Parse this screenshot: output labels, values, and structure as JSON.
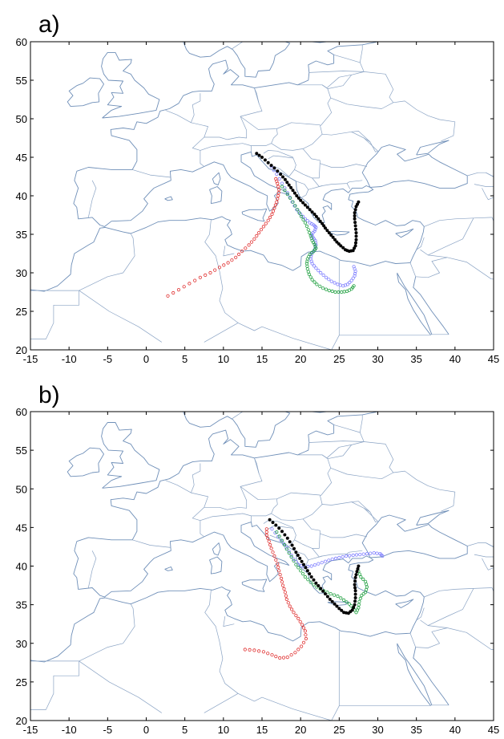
{
  "panels": [
    {
      "label": "a)",
      "trajectories": [
        {
          "color": "#e03030",
          "filled": false,
          "points": [
            [
              2.8,
              27.0
            ],
            [
              4.2,
              27.8
            ],
            [
              5.6,
              28.6
            ],
            [
              7.0,
              29.4
            ],
            [
              8.3,
              30.0
            ],
            [
              9.5,
              30.7
            ],
            [
              10.6,
              31.3
            ],
            [
              11.6,
              32.0
            ],
            [
              12.4,
              32.8
            ],
            [
              13.3,
              33.6
            ],
            [
              14.0,
              34.4
            ],
            [
              14.6,
              35.2
            ],
            [
              15.2,
              36.0
            ],
            [
              15.8,
              36.8
            ],
            [
              16.3,
              37.6
            ],
            [
              16.6,
              38.4
            ],
            [
              16.9,
              39.2
            ],
            [
              17.1,
              40.0
            ],
            [
              17.2,
              40.8
            ],
            [
              17.0,
              41.6
            ],
            [
              16.8,
              42.2
            ]
          ]
        },
        {
          "color": "#8080ff",
          "filled": false,
          "points": [
            [
              16.2,
              43.8
            ],
            [
              16.9,
              42.8
            ],
            [
              17.6,
              41.6
            ],
            [
              18.3,
              40.4
            ],
            [
              18.9,
              39.2
            ],
            [
              19.5,
              38.2
            ],
            [
              20.0,
              37.6
            ],
            [
              20.6,
              37.0
            ],
            [
              21.2,
              36.5
            ],
            [
              21.7,
              36.2
            ],
            [
              22.0,
              35.9
            ],
            [
              21.8,
              35.4
            ],
            [
              21.4,
              35.0
            ],
            [
              21.6,
              34.6
            ],
            [
              21.9,
              34.2
            ],
            [
              22.0,
              33.6
            ],
            [
              21.8,
              33.0
            ],
            [
              21.4,
              32.4
            ],
            [
              21.3,
              31.8
            ],
            [
              21.5,
              31.2
            ],
            [
              22.0,
              30.6
            ],
            [
              22.6,
              30.0
            ],
            [
              23.3,
              29.4
            ],
            [
              24.0,
              28.9
            ],
            [
              24.8,
              28.5
            ],
            [
              25.5,
              28.3
            ],
            [
              26.1,
              28.5
            ],
            [
              26.6,
              29.0
            ],
            [
              27.0,
              29.6
            ],
            [
              27.1,
              30.2
            ],
            [
              26.9,
              30.8
            ]
          ]
        },
        {
          "color": "#20a040",
          "filled": false,
          "points": [
            [
              17.6,
              41.2
            ],
            [
              18.3,
              40.2
            ],
            [
              19.0,
              39.2
            ],
            [
              19.6,
              38.2
            ],
            [
              20.1,
              37.3
            ],
            [
              20.6,
              36.5
            ],
            [
              21.0,
              35.6
            ],
            [
              21.3,
              34.8
            ],
            [
              21.5,
              34.2
            ],
            [
              21.8,
              33.7
            ],
            [
              22.0,
              33.2
            ],
            [
              21.7,
              32.8
            ],
            [
              21.2,
              32.4
            ],
            [
              20.9,
              31.8
            ],
            [
              20.8,
              31.2
            ],
            [
              20.9,
              30.5
            ],
            [
              21.1,
              29.8
            ],
            [
              21.5,
              29.1
            ],
            [
              22.1,
              28.5
            ],
            [
              22.9,
              28.0
            ],
            [
              23.7,
              27.7
            ],
            [
              24.5,
              27.5
            ],
            [
              25.3,
              27.5
            ],
            [
              26.0,
              27.6
            ],
            [
              26.6,
              27.9
            ],
            [
              26.9,
              28.3
            ]
          ]
        },
        {
          "color": "#000000",
          "filled": true,
          "points": [
            [
              14.3,
              45.5
            ],
            [
              15.0,
              45.0
            ],
            [
              15.8,
              44.3
            ],
            [
              16.6,
              43.6
            ],
            [
              17.4,
              42.8
            ],
            [
              18.0,
              42.1
            ],
            [
              18.5,
              41.4
            ],
            [
              19.0,
              40.7
            ],
            [
              19.5,
              40.0
            ],
            [
              20.0,
              39.4
            ],
            [
              20.6,
              38.8
            ],
            [
              21.2,
              38.2
            ],
            [
              21.8,
              37.6
            ],
            [
              22.3,
              37.0
            ],
            [
              22.8,
              36.4
            ],
            [
              23.2,
              35.8
            ],
            [
              23.7,
              35.2
            ],
            [
              24.2,
              34.6
            ],
            [
              24.7,
              34.0
            ],
            [
              25.2,
              33.5
            ],
            [
              25.8,
              33.0
            ],
            [
              26.3,
              32.8
            ],
            [
              26.8,
              32.9
            ],
            [
              27.1,
              33.5
            ],
            [
              27.2,
              34.3
            ],
            [
              27.2,
              35.2
            ],
            [
              27.1,
              36.1
            ],
            [
              27.0,
              37.0
            ],
            [
              27.0,
              37.8
            ],
            [
              27.2,
              38.6
            ],
            [
              27.5,
              39.2
            ]
          ]
        }
      ]
    },
    {
      "label": "b)",
      "trajectories": [
        {
          "color": "#e03030",
          "filled": false,
          "points": [
            [
              12.8,
              29.2
            ],
            [
              14.0,
              29.1
            ],
            [
              15.2,
              28.9
            ],
            [
              16.3,
              28.5
            ],
            [
              17.3,
              28.1
            ],
            [
              18.3,
              28.2
            ],
            [
              19.3,
              28.8
            ],
            [
              20.1,
              29.6
            ],
            [
              20.7,
              30.6
            ],
            [
              20.6,
              31.6
            ],
            [
              20.2,
              32.4
            ],
            [
              19.7,
              33.2
            ],
            [
              19.1,
              34.0
            ],
            [
              18.6,
              34.8
            ],
            [
              18.2,
              35.7
            ],
            [
              18.0,
              36.6
            ],
            [
              17.7,
              37.5
            ],
            [
              17.5,
              38.4
            ],
            [
              17.2,
              39.4
            ],
            [
              17.0,
              40.3
            ],
            [
              16.6,
              41.3
            ],
            [
              16.2,
              42.3
            ],
            [
              15.9,
              43.2
            ],
            [
              15.6,
              44.0
            ],
            [
              15.6,
              44.8
            ]
          ]
        },
        {
          "color": "#8080ff",
          "filled": false,
          "points": [
            [
              16.3,
              44.8
            ],
            [
              17.1,
              43.8
            ],
            [
              17.8,
              42.9
            ],
            [
              18.5,
              41.9
            ],
            [
              19.1,
              40.9
            ],
            [
              19.7,
              40.2
            ],
            [
              20.5,
              39.9
            ],
            [
              21.4,
              40.0
            ],
            [
              22.3,
              40.3
            ],
            [
              23.2,
              40.6
            ],
            [
              24.1,
              40.9
            ],
            [
              25.0,
              41.1
            ],
            [
              25.9,
              41.3
            ],
            [
              26.8,
              41.4
            ],
            [
              27.7,
              41.5
            ],
            [
              28.6,
              41.6
            ],
            [
              29.5,
              41.7
            ],
            [
              30.3,
              41.6
            ],
            [
              30.6,
              41.3
            ]
          ]
        },
        {
          "color": "#20a040",
          "filled": false,
          "points": [
            [
              16.9,
              44.4
            ],
            [
              17.6,
              43.3
            ],
            [
              18.2,
              42.2
            ],
            [
              18.8,
              41.2
            ],
            [
              19.4,
              40.2
            ],
            [
              20.0,
              39.4
            ],
            [
              20.6,
              38.6
            ],
            [
              21.3,
              37.9
            ],
            [
              22.1,
              37.3
            ],
            [
              23.0,
              36.8
            ],
            [
              23.9,
              36.4
            ],
            [
              24.8,
              36.1
            ],
            [
              25.6,
              35.6
            ],
            [
              26.3,
              35.1
            ],
            [
              26.8,
              34.6
            ],
            [
              27.2,
              34.0
            ],
            [
              27.5,
              34.6
            ],
            [
              27.6,
              35.4
            ],
            [
              27.9,
              36.2
            ],
            [
              28.4,
              36.6
            ],
            [
              28.6,
              37.3
            ],
            [
              28.4,
              38.0
            ],
            [
              27.8,
              38.6
            ],
            [
              27.5,
              39.3
            ]
          ]
        },
        {
          "color": "#000000",
          "filled": true,
          "points": [
            [
              16.0,
              46.0
            ],
            [
              16.8,
              45.3
            ],
            [
              17.6,
              44.5
            ],
            [
              18.3,
              43.6
            ],
            [
              18.9,
              42.7
            ],
            [
              19.4,
              41.8
            ],
            [
              19.9,
              41.0
            ],
            [
              20.4,
              40.2
            ],
            [
              20.9,
              39.4
            ],
            [
              21.4,
              38.6
            ],
            [
              22.0,
              37.8
            ],
            [
              22.6,
              37.1
            ],
            [
              23.2,
              36.4
            ],
            [
              23.8,
              35.7
            ],
            [
              24.4,
              35.1
            ],
            [
              25.0,
              34.5
            ],
            [
              25.6,
              34.0
            ],
            [
              26.2,
              33.9
            ],
            [
              26.7,
              34.3
            ],
            [
              27.0,
              35.0
            ],
            [
              27.1,
              35.9
            ],
            [
              27.1,
              36.8
            ],
            [
              27.0,
              37.6
            ],
            [
              27.1,
              38.5
            ],
            [
              27.3,
              39.3
            ],
            [
              27.5,
              40.0
            ]
          ]
        }
      ]
    }
  ],
  "axes": {
    "xticks": [
      "-15",
      "-10",
      "-5",
      "0",
      "5",
      "10",
      "15",
      "20",
      "25",
      "30",
      "35",
      "40",
      "45"
    ],
    "yticks": [
      "60",
      "55",
      "50",
      "45",
      "40",
      "35",
      "30",
      "25",
      "20"
    ],
    "xlim": [
      -15,
      45
    ],
    "ylim": [
      20,
      60
    ]
  }
}
